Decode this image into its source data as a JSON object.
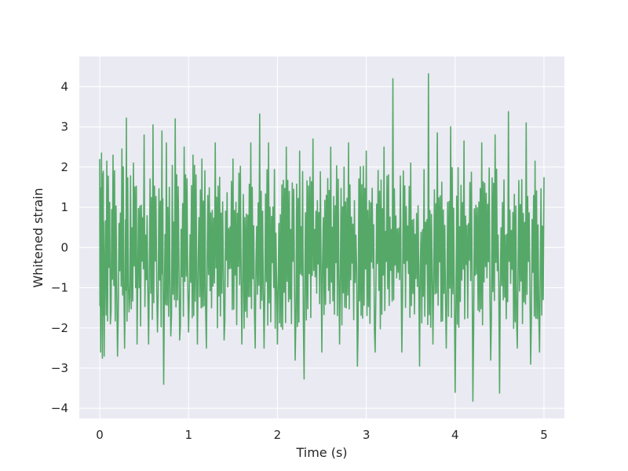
{
  "chart_data": {
    "type": "line",
    "title": "",
    "xlabel": "Time (s)",
    "ylabel": "Whitened strain",
    "xlim": [
      -0.23,
      5.23
    ],
    "ylim": [
      -4.25,
      4.75
    ],
    "x_ticks": [
      0,
      1,
      2,
      3,
      4,
      5
    ],
    "y_ticks": [
      -4,
      -3,
      -2,
      -1,
      0,
      1,
      2,
      3,
      4
    ],
    "x_tick_labels": [
      "0",
      "1",
      "2",
      "3",
      "4",
      "5"
    ],
    "y_tick_labels": [
      "−4",
      "−3",
      "−2",
      "−1",
      "0",
      "1",
      "2",
      "3",
      "4"
    ],
    "grid": true,
    "legend": "none",
    "series": [
      {
        "color": "#55a868",
        "x": [
          0.0,
          0.01,
          0.02,
          0.03,
          0.04,
          0.05,
          0.08,
          0.12,
          0.15,
          0.2,
          0.25,
          0.28,
          0.3,
          0.33,
          0.38,
          0.42,
          0.5,
          0.55,
          0.6,
          0.65,
          0.7,
          0.72,
          0.75,
          0.8,
          0.85,
          0.9,
          0.95,
          1.0,
          1.05,
          1.1,
          1.15,
          1.2,
          1.3,
          1.4,
          1.5,
          1.6,
          1.7,
          1.75,
          1.8,
          1.85,
          1.9,
          2.0,
          2.1,
          2.2,
          2.25,
          2.3,
          2.4,
          2.5,
          2.6,
          2.7,
          2.8,
          2.9,
          3.0,
          3.1,
          3.2,
          3.3,
          3.4,
          3.5,
          3.6,
          3.7,
          3.75,
          3.8,
          3.9,
          3.95,
          4.0,
          4.1,
          4.2,
          4.3,
          4.4,
          4.45,
          4.5,
          4.6,
          4.7,
          4.8,
          4.85,
          4.9,
          4.95,
          5.0
        ],
        "y": [
          2.2,
          -2.6,
          2.35,
          -2.75,
          1.9,
          -2.7,
          2.15,
          -1.9,
          2.3,
          -2.7,
          2.45,
          -2.5,
          3.22,
          -1.6,
          2.1,
          -2.4,
          2.8,
          -2.4,
          3.05,
          -2.1,
          2.9,
          -3.4,
          2.6,
          -2.2,
          3.2,
          -2.3,
          2.5,
          -2.1,
          2.3,
          -2.4,
          2.2,
          -2.5,
          2.6,
          -2.3,
          2.2,
          -2.4,
          2.6,
          -2.5,
          3.32,
          -2.5,
          2.6,
          -2.4,
          2.5,
          -2.8,
          2.4,
          -3.27,
          2.7,
          -2.6,
          2.5,
          -2.4,
          2.6,
          -2.95,
          2.4,
          -2.6,
          2.5,
          4.2,
          -2.6,
          2.1,
          -2.95,
          4.32,
          -2.4,
          2.85,
          -2.5,
          3.0,
          -3.6,
          2.65,
          -3.82,
          2.6,
          -2.8,
          2.8,
          -3.62,
          3.38,
          -2.5,
          3.1,
          -2.9,
          2.15,
          -2.6,
          1.75
        ]
      }
    ]
  }
}
